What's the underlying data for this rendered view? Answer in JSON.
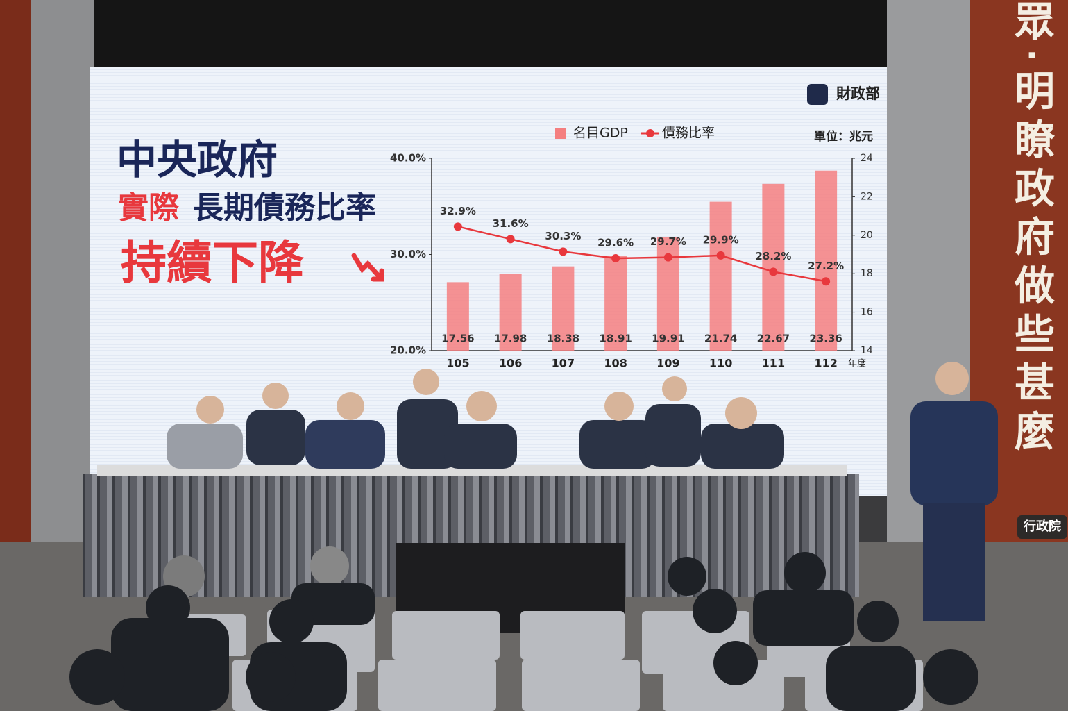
{
  "chart_data": {
    "type": "combo",
    "title": "中央政府",
    "subtitle_parts": [
      "實際",
      "長期債務比率"
    ],
    "headline": "持續下降",
    "logo": "財政部",
    "unit_label": "單位：兆元",
    "xlabel": "年度",
    "categories": [
      "105",
      "106",
      "107",
      "108",
      "109",
      "110",
      "111",
      "112"
    ],
    "series": [
      {
        "name": "名目GDP",
        "type": "bar",
        "axis": "y2",
        "color": "#f47f80",
        "values": [
          17.56,
          17.98,
          18.38,
          18.91,
          19.91,
          21.74,
          22.67,
          23.36
        ]
      },
      {
        "name": "債務比率",
        "type": "line",
        "axis": "y",
        "color": "#e8383d",
        "values": [
          32.9,
          31.6,
          30.3,
          29.6,
          29.7,
          29.9,
          28.2,
          27.2
        ],
        "value_labels": [
          "32.9%",
          "31.6%",
          "30.3%",
          "29.6%",
          "29.7%",
          "29.9%",
          "28.2%",
          "27.2%"
        ]
      }
    ],
    "ylim": [
      20,
      40
    ],
    "yticks": [
      {
        "value": 20,
        "label": "20.0%"
      },
      {
        "value": 30,
        "label": "30.0%"
      },
      {
        "value": 40,
        "label": "40.0%"
      }
    ],
    "y2lim": [
      14,
      24
    ],
    "y2ticks": [
      14,
      16,
      18,
      20,
      22,
      24
    ],
    "grid": false
  },
  "wall_text": "眾‧明瞭政府做些甚麼",
  "podium_sign": "行政院"
}
